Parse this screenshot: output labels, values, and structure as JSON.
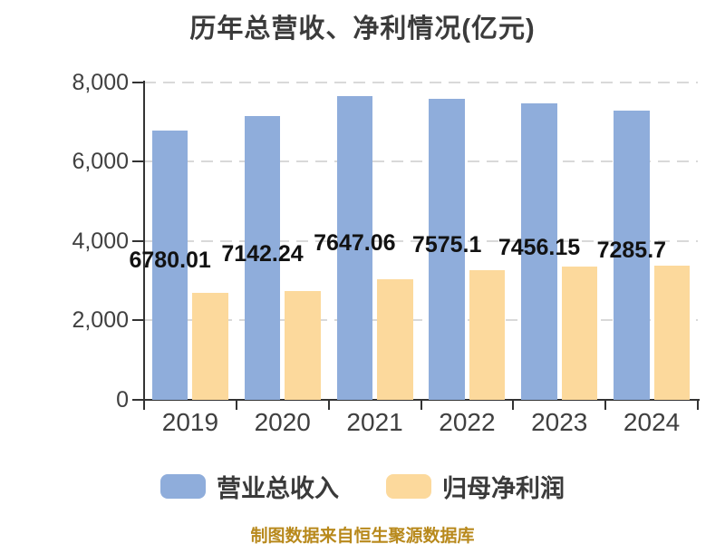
{
  "title": "历年总营收、净利情况(亿元)",
  "footer": "制图数据来自恒生聚源数据库",
  "colors": {
    "revenue_bar": "#8faddb",
    "profit_bar": "#fcd99c",
    "gridline": "#d9d9d9",
    "axis": "#333333",
    "title_text": "#3b3b3b",
    "axis_text": "#404040",
    "data_label_text": "#121212",
    "footer_text": "#b8891c",
    "background": "#ffffff"
  },
  "legend": {
    "items": [
      {
        "label": "营业总收入",
        "color": "#8faddb"
      },
      {
        "label": "归母净利润",
        "color": "#fcd99c"
      }
    ]
  },
  "chart_data": {
    "type": "bar",
    "title": "历年总营收、净利情况(亿元)",
    "categories": [
      "2019",
      "2020",
      "2021",
      "2022",
      "2023",
      "2024"
    ],
    "series": [
      {
        "name": "营业总收入",
        "color": "#8faddb",
        "values": [
          6780.01,
          7142.24,
          7647.06,
          7575.1,
          7456.15,
          7285.7
        ],
        "data_labels": [
          "6780.01",
          "7142.24",
          "7647.06",
          "7575.1",
          "7456.15",
          "7285.7"
        ]
      },
      {
        "name": "归母净利润",
        "color": "#fcd99c",
        "values": [
          2700,
          2740,
          3040,
          3260,
          3350,
          3370
        ],
        "values_note": "unlabeled in chart, estimated from bar heights",
        "data_labels": []
      }
    ],
    "xlabel": "",
    "ylabel": "",
    "ylim": [
      0,
      8000
    ],
    "ytick_values": [
      8000,
      6000,
      4000,
      2000,
      0
    ],
    "ytick_labels": [
      "8,000",
      "6,000",
      "4,000",
      "2,000",
      "0"
    ],
    "grid": "horizontal-dashed",
    "legend_position": "bottom"
  }
}
